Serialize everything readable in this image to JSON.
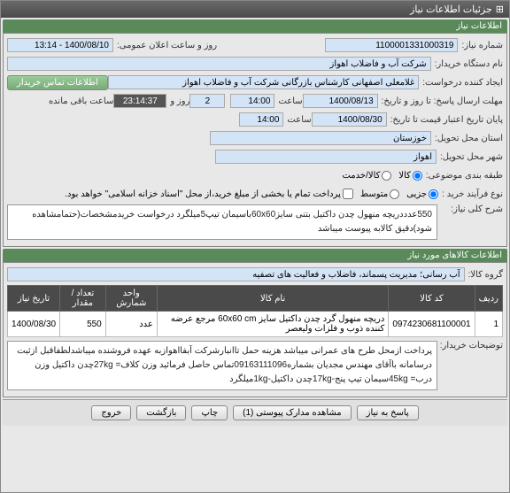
{
  "titlebar": {
    "title": "جزئیات اطلاعات نیاز",
    "icon": "⊞"
  },
  "header_info": {
    "label": "اطلاعات نیاز"
  },
  "fields": {
    "need_no_label": "شماره نیاز:",
    "need_no": "1100001331000319",
    "announce_label": "روز و ساعت اعلان عمومی:",
    "announce_value": "1400/08/10 - 13:14",
    "buyer_label": "نام دستگاه خریدار:",
    "buyer_value": "شرکت آب و فاضلاب اهواز",
    "creator_label": "ایجاد کننده درخواست:",
    "creator_value": "غلامعلی اصفهانی کارشناس بازرگانی شرکت آب و فاضلاب اهواز",
    "contact_btn": "اطلاعات تماس خریدار",
    "deadline_label": "مهلت ارسال پاسخ: تا روز و تاریخ:",
    "deadline_date": "1400/08/13",
    "deadline_time_label": "ساعت",
    "deadline_time": "14:00",
    "days_label": "",
    "days_value": "2",
    "countdown": "23:14:37",
    "remain_label": "ساعت باقی مانده",
    "validity_label": "پایان تاریخ اعتبار قیمت تا تاریخ:",
    "validity_date": "1400/08/30",
    "validity_time_label": "ساعت",
    "validity_time": "14:00",
    "province_label": "استان محل تحویل:",
    "province_value": "خوزستان",
    "city_label": "شهر محل تحویل:",
    "city_value": "اهواز",
    "classify_label": "طبقه بندی موضوعی:",
    "option_kala": "کالا",
    "option_khadamat": "کالا/خدمت",
    "buytype_label": "نوع فرآیند خرید :",
    "buytype_partial": "جزیی",
    "buytype_mid": "متوسط",
    "buytype_note": "پرداخت تمام یا بخشی از مبلغ خرید،از محل \"اسناد خزانه اسلامی\" خواهد بود.",
    "desc_label": "شرح کلی نیاز:",
    "desc_text": "550عدددریچه منهول چدن داکتیل بتنی سایز60x60باسیمان تیپ5میلگرد درخواست خریدمشخصات(حتمامشاهده شود)دقیق کالابه پیوست میباشد",
    "items_header": "اطلاعات کالاهای مورد نیاز",
    "group_label": "گروه کالا:",
    "group_value": "آب رسانی؛ مدیریت پسماند، فاضلاب و فعالیت های تصفیه",
    "explain_label": "توضیحات خریدار:",
    "explain_text": "پرداخت ازمحل طرح های عمرانی میباشد هزینه حمل تاانبارشرکت آبفااهوازبه عهده فروشنده میباشدلطفاقبل ازثبت درسامانه باآقای مهندس مجدیان بشماره09163111096تماس حاصل فرمائید وزن کلاف= 27kgچدن داکتیل    وزن درب= 45kgسیمان تیپ پنج-17kgچدن داکتیل-1kgمیلگرد"
  },
  "table": {
    "columns": [
      "ردیف",
      "کد کالا",
      "نام کالا",
      "واحد شمارش",
      "تعداد / مقدار",
      "تاریخ نیاز"
    ],
    "rows": [
      [
        "1",
        "0974230681100001",
        "دریچه منهول گرد چدن داکتیل سایز 60x60 cm مرجع عرضه کننده ذوب و فلزات ولیعصر",
        "عدد",
        "550",
        "1400/08/30"
      ]
    ]
  },
  "footer": {
    "reply_btn": "پاسخ به نیاز",
    "attach_btn": "مشاهده مدارک پیوستی (1)",
    "print_btn": "چاپ",
    "close_btn": "بازگشت",
    "exit_btn": "خروج"
  }
}
